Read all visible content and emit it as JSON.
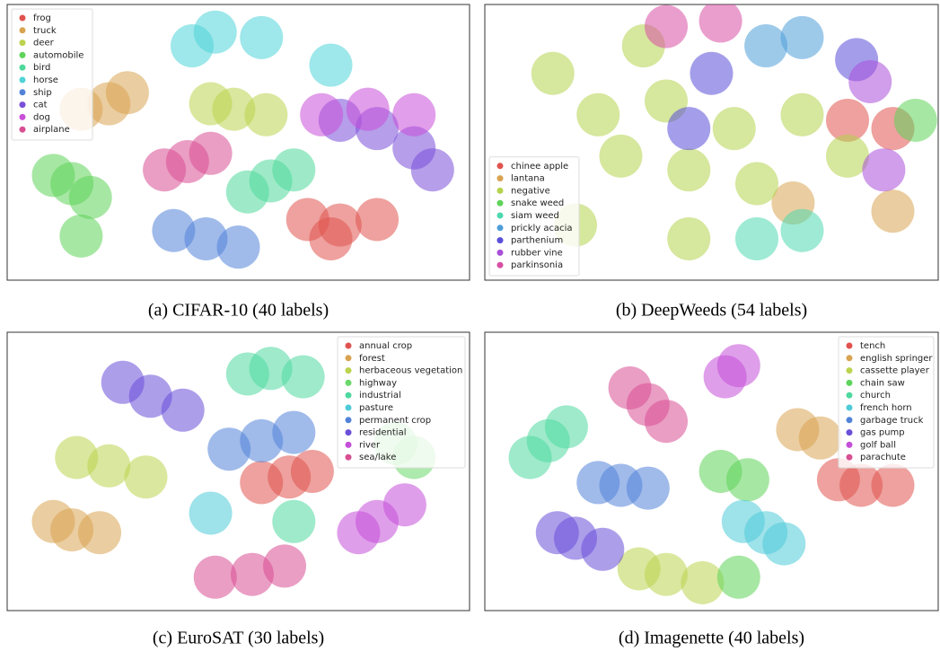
{
  "chart_data": [
    {
      "type": "scatter",
      "caption": "(a) CIFAR-10 (40 labels)",
      "legend": "upper left",
      "xlim": [
        0,
        100
      ],
      "ylim": [
        0,
        100
      ],
      "series": [
        {
          "name": "frog",
          "color": "#e0534f",
          "x": [
            72,
            65,
            80,
            70
          ],
          "y": [
            20,
            22,
            22,
            15
          ]
        },
        {
          "name": "truck",
          "color": "#d8a452",
          "x": [
            22,
            16,
            26
          ],
          "y": [
            64,
            62,
            68
          ]
        },
        {
          "name": "deer",
          "color": "#bcd34f",
          "x": [
            49,
            44,
            56
          ],
          "y": [
            62,
            64,
            60
          ]
        },
        {
          "name": "automobile",
          "color": "#5ed35a",
          "x": [
            14,
            10,
            18,
            16
          ],
          "y": [
            35,
            38,
            30,
            16
          ]
        },
        {
          "name": "bird",
          "color": "#4fd89a",
          "x": [
            57,
            62,
            52
          ],
          "y": [
            36,
            40,
            32
          ]
        },
        {
          "name": "horse",
          "color": "#4fd3d8",
          "x": [
            45,
            40,
            55,
            70
          ],
          "y": [
            90,
            85,
            88,
            78
          ]
        },
        {
          "name": "ship",
          "color": "#5283d8",
          "x": [
            43,
            36,
            50
          ],
          "y": [
            15,
            18,
            12
          ]
        },
        {
          "name": "cat",
          "color": "#7a4fd8",
          "x": [
            80,
            88,
            72,
            92
          ],
          "y": [
            55,
            48,
            58,
            40
          ]
        },
        {
          "name": "dog",
          "color": "#c94fd8",
          "x": [
            78,
            68,
            88
          ],
          "y": [
            62,
            60,
            60
          ]
        },
        {
          "name": "airplane",
          "color": "#d84f93",
          "x": [
            39,
            34,
            44
          ],
          "y": [
            43,
            40,
            46
          ]
        }
      ]
    },
    {
      "type": "scatter",
      "caption": "(b) DeepWeeds (54 labels)",
      "legend": "lower left",
      "xlim": [
        0,
        100
      ],
      "ylim": [
        0,
        100
      ],
      "series": [
        {
          "name": "chinee apple",
          "color": "#e0534f",
          "x": [
            80,
            90
          ],
          "y": [
            58,
            55
          ]
        },
        {
          "name": "lantana",
          "color": "#d8a452",
          "x": [
            68,
            90
          ],
          "y": [
            28,
            25
          ]
        },
        {
          "name": "negative",
          "color": "#b5d34f",
          "x": [
            15,
            25,
            40,
            55,
            45,
            30,
            60,
            20,
            45,
            70,
            80,
            35
          ],
          "y": [
            75,
            60,
            65,
            55,
            40,
            45,
            35,
            20,
            15,
            60,
            45,
            85
          ]
        },
        {
          "name": "snake weed",
          "color": "#5ed35a",
          "x": [
            95
          ],
          "y": [
            58
          ]
        },
        {
          "name": "siam weed",
          "color": "#4fd8b0",
          "x": [
            60,
            70
          ],
          "y": [
            15,
            18
          ]
        },
        {
          "name": "prickly acacia",
          "color": "#4f9ed8",
          "x": [
            62,
            70
          ],
          "y": [
            85,
            88
          ]
        },
        {
          "name": "parthenium",
          "color": "#5a4fd8",
          "x": [
            50,
            82,
            45
          ],
          "y": [
            75,
            80,
            55
          ]
        },
        {
          "name": "rubber vine",
          "color": "#a94fd8",
          "x": [
            88,
            85
          ],
          "y": [
            40,
            72
          ]
        },
        {
          "name": "parkinsonia",
          "color": "#d84fa4",
          "x": [
            40,
            52
          ],
          "y": [
            92,
            94
          ]
        }
      ]
    },
    {
      "type": "scatter",
      "caption": "(c) EuroSAT (30 labels)",
      "legend": "upper right",
      "xlim": [
        0,
        100
      ],
      "ylim": [
        0,
        100
      ],
      "series": [
        {
          "name": "annual crop",
          "color": "#e0534f",
          "x": [
            61,
            55,
            66
          ],
          "y": [
            48,
            46,
            50
          ]
        },
        {
          "name": "forest",
          "color": "#d8a452",
          "x": [
            14,
            10,
            20
          ],
          "y": [
            29,
            32,
            28
          ]
        },
        {
          "name": "herbaceous vegetation",
          "color": "#bcd34f",
          "x": [
            22,
            15,
            30
          ],
          "y": [
            52,
            55,
            48
          ]
        },
        {
          "name": "highway",
          "color": "#6ad86a",
          "x": [
            88,
            84
          ],
          "y": [
            55,
            60
          ]
        },
        {
          "name": "industrial",
          "color": "#4fd8a0",
          "x": [
            57,
            52,
            64,
            62
          ],
          "y": [
            87,
            85,
            84,
            32
          ]
        },
        {
          "name": "pasture",
          "color": "#4fcbd8",
          "x": [
            44
          ],
          "y": [
            35
          ]
        },
        {
          "name": "permanent crop",
          "color": "#5283d8",
          "x": [
            55,
            48,
            62
          ],
          "y": [
            61,
            58,
            64
          ]
        },
        {
          "name": "residential",
          "color": "#6a4fd8",
          "x": [
            31,
            25,
            38
          ],
          "y": [
            77,
            82,
            72
          ]
        },
        {
          "name": "river",
          "color": "#c44fd8",
          "x": [
            80,
            86,
            76
          ],
          "y": [
            32,
            38,
            28
          ]
        },
        {
          "name": "sea/lake",
          "color": "#d84f93",
          "x": [
            53,
            45,
            60
          ],
          "y": [
            13,
            12,
            16
          ]
        }
      ]
    },
    {
      "type": "scatter",
      "caption": "(d) Imagenette (40 labels)",
      "legend": "upper right",
      "xlim": [
        0,
        100
      ],
      "ylim": [
        0,
        100
      ],
      "series": [
        {
          "name": "tench",
          "color": "#e0534f",
          "x": [
            83,
            90,
            78
          ],
          "y": [
            45,
            45,
            47
          ]
        },
        {
          "name": "english springer",
          "color": "#d8a452",
          "x": [
            69,
            74
          ],
          "y": [
            65,
            62
          ]
        },
        {
          "name": "cassette player",
          "color": "#bcd34f",
          "x": [
            40,
            34,
            48
          ],
          "y": [
            13,
            15,
            10
          ]
        },
        {
          "name": "chain saw",
          "color": "#5ed35a",
          "x": [
            52,
            58,
            56
          ],
          "y": [
            50,
            47,
            12
          ]
        },
        {
          "name": "church",
          "color": "#4fd8a0",
          "x": [
            14,
            10,
            18
          ],
          "y": [
            61,
            55,
            66
          ]
        },
        {
          "name": "french horn",
          "color": "#4fcbd8",
          "x": [
            57,
            62,
            66
          ],
          "y": [
            32,
            28,
            24
          ]
        },
        {
          "name": "garbage truck",
          "color": "#5283d8",
          "x": [
            30,
            25,
            36
          ],
          "y": [
            45,
            46,
            44
          ]
        },
        {
          "name": "gas pump",
          "color": "#6a4fd8",
          "x": [
            20,
            16,
            26
          ],
          "y": [
            26,
            28,
            22
          ]
        },
        {
          "name": "golf ball",
          "color": "#c44fd8",
          "x": [
            53,
            56
          ],
          "y": [
            84,
            88
          ]
        },
        {
          "name": "parachute",
          "color": "#d84f93",
          "x": [
            36,
            32,
            40
          ],
          "y": [
            74,
            80,
            68
          ]
        }
      ]
    }
  ]
}
